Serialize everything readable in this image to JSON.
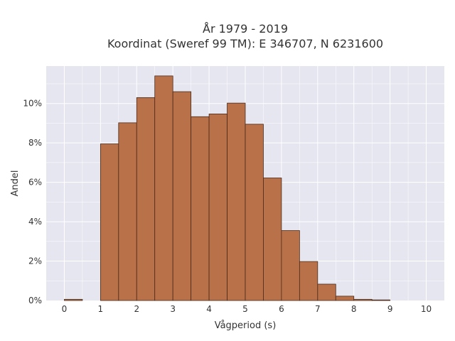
{
  "chart_data": {
    "type": "bar",
    "title": "År 1979 - 2019",
    "subtitle": "Koordinat (Sweref 99 TM): E 346707, N 6231600",
    "xlabel": "Vågperiod (s)",
    "ylabel": "Andel",
    "bin_width": 0.5,
    "bins_start": [
      0,
      0.5,
      1,
      1.5,
      2,
      2.5,
      3,
      3.5,
      4,
      4.5,
      5,
      5.5,
      6,
      6.5,
      7,
      7.5,
      8,
      8.5,
      9,
      9.5
    ],
    "values": [
      0.06,
      0,
      7.95,
      9.02,
      10.3,
      11.4,
      10.6,
      9.33,
      9.47,
      10.02,
      8.95,
      6.22,
      3.55,
      1.98,
      0.83,
      0.22,
      0.06,
      0.03,
      0,
      0
    ],
    "xlim": [
      -0.5,
      10.5
    ],
    "ylim": [
      0,
      11.9
    ],
    "xticks": [
      0,
      1,
      2,
      3,
      4,
      5,
      6,
      7,
      8,
      9,
      10
    ],
    "xtick_labels": [
      "0",
      "1",
      "2",
      "3",
      "4",
      "5",
      "6",
      "7",
      "8",
      "9",
      "10"
    ],
    "yticks": [
      0,
      2,
      4,
      6,
      8,
      10
    ],
    "ytick_labels": [
      "0%",
      "2%",
      "4%",
      "6%",
      "8%",
      "10%"
    ],
    "grid": true,
    "colors": {
      "bar_fill": "#b9714a",
      "bar_stroke": "#4a2a18",
      "plot_bg": "#e5e6f0",
      "grid": "#ffffff"
    }
  }
}
